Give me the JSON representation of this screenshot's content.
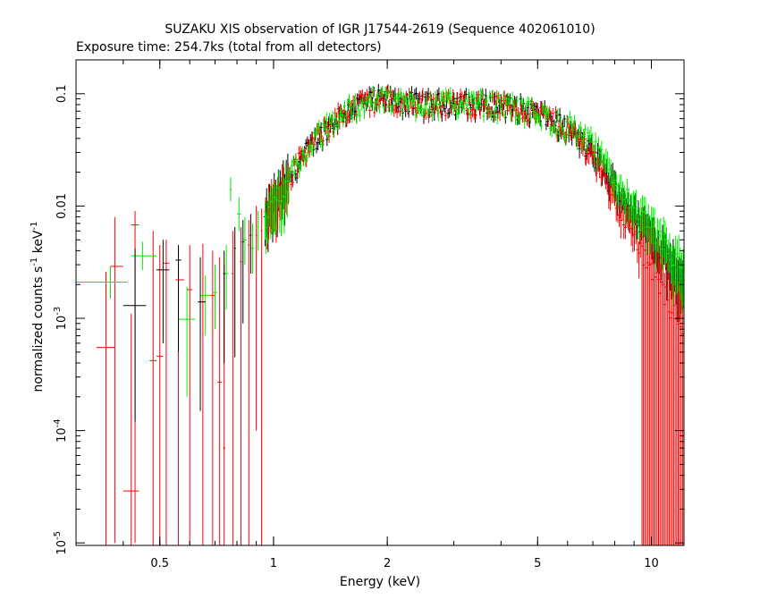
{
  "chart_data": {
    "type": "scatter",
    "title": "SUZAKU XIS observation of IGR J17544-2619 (Sequence 402061010)",
    "subtitle": "Exposure time: 254.7ks (total from all detectors)",
    "xlabel": "Energy (keV)",
    "ylabel_text": "normalized counts s",
    "ylabel_exp1": "-1",
    "ylabel_mid": " keV",
    "ylabel_exp2": "-1",
    "xscale": "log",
    "yscale": "log",
    "xlim": [
      0.3,
      12.2
    ],
    "ylim": [
      9.5e-06,
      0.2
    ],
    "grid": false,
    "x_ticks": [
      {
        "value": 0.5,
        "label": "0.5"
      },
      {
        "value": 1,
        "label": "1"
      },
      {
        "value": 2,
        "label": "2"
      },
      {
        "value": 5,
        "label": "5"
      },
      {
        "value": 10,
        "label": "10"
      }
    ],
    "y_ticks": [
      {
        "value": 0.1,
        "mant": "0.1",
        "exp": ""
      },
      {
        "value": 0.01,
        "mant": "0.01",
        "exp": ""
      },
      {
        "value": 0.001,
        "mant": "10",
        "exp": "-3"
      },
      {
        "value": 0.0001,
        "mant": "10",
        "exp": "-4"
      },
      {
        "value": 1e-05,
        "mant": "10",
        "exp": "-5"
      }
    ],
    "series": [
      {
        "color": "#ff0000",
        "points": [
          {
            "x": 0.36,
            "y": 0.00055,
            "ylo": 9e-06,
            "yhi": 0.0026,
            "xlo": 0.34,
            "xhi": 0.38
          },
          {
            "x": 0.38,
            "y": 0.0029,
            "ylo": 1e-05,
            "yhi": 0.008,
            "xlo": 0.37,
            "xhi": 0.4
          },
          {
            "x": 0.42,
            "y": 2.9e-05,
            "ylo": 9e-06,
            "yhi": 0.0011,
            "xlo": 0.4,
            "xhi": 0.44
          },
          {
            "x": 0.43,
            "y": 0.0068,
            "ylo": 1e-05,
            "yhi": 0.009,
            "xlo": 0.42,
            "xhi": 0.44
          },
          {
            "x": 0.48,
            "y": 0.00042,
            "ylo": 9e-06,
            "yhi": 0.006,
            "xlo": 0.47,
            "xhi": 0.49
          },
          {
            "x": 0.5,
            "y": 0.00046,
            "ylo": 9e-06,
            "yhi": 0.0045,
            "xlo": 0.49,
            "xhi": 0.51
          },
          {
            "x": 0.52,
            "y": 0.0031,
            "ylo": 9e-06,
            "yhi": 0.005,
            "xlo": 0.51,
            "xhi": 0.53
          },
          {
            "x": 0.56,
            "y": 0.0022,
            "ylo": 9e-06,
            "yhi": 0.0045,
            "xlo": 0.55,
            "xhi": 0.58
          },
          {
            "x": 0.6,
            "y": 0.0018,
            "ylo": 9e-06,
            "yhi": 0.0045,
            "xlo": 0.59,
            "xhi": 0.61
          },
          {
            "x": 0.65,
            "y": 0.0014,
            "ylo": 9e-06,
            "yhi": 0.0046,
            "xlo": 0.64,
            "xhi": 0.66
          },
          {
            "x": 0.69,
            "y": 0.0016,
            "ylo": 9e-06,
            "yhi": 0.004,
            "xlo": 0.68,
            "xhi": 0.7
          },
          {
            "x": 0.72,
            "y": 0.00027,
            "ylo": 9e-06,
            "yhi": 0.0035,
            "xlo": 0.71,
            "xhi": 0.73
          },
          {
            "x": 0.74,
            "y": 7e-05,
            "ylo": 9e-06,
            "yhi": 0.003,
            "xlo": 0.735,
            "xhi": 0.745
          },
          {
            "x": 0.78,
            "y": 0.0025,
            "ylo": 9e-06,
            "yhi": 0.006,
            "xlo": 0.775,
            "xhi": 0.785
          },
          {
            "x": 0.82,
            "y": 0.0032,
            "ylo": 9e-06,
            "yhi": 0.0065,
            "xlo": 0.815,
            "xhi": 0.825
          },
          {
            "x": 0.86,
            "y": 0.0045,
            "ylo": 9e-06,
            "yhi": 0.0075,
            "xlo": 0.855,
            "xhi": 0.865
          },
          {
            "x": 0.9,
            "y": 0.0055,
            "ylo": 0.0001,
            "yhi": 0.01,
            "xlo": 0.895,
            "xhi": 0.905
          },
          {
            "x": 0.93,
            "y": 0.006,
            "ylo": 9e-06,
            "yhi": 0.0095,
            "xlo": 0.925,
            "xhi": 0.935
          }
        ]
      },
      {
        "color": "#00ee00",
        "points": [
          {
            "x": 0.37,
            "y": 0.0021,
            "ylo": 0.0015,
            "yhi": 0.0029,
            "xlo": 0.3,
            "xhi": 0.41
          },
          {
            "x": 0.45,
            "y": 0.0036,
            "ylo": 0.0027,
            "yhi": 0.0048,
            "xlo": 0.42,
            "xhi": 0.49
          },
          {
            "x": 0.59,
            "y": 0.00098,
            "ylo": 0.0002,
            "yhi": 0.0019,
            "xlo": 0.56,
            "xhi": 0.62
          },
          {
            "x": 0.66,
            "y": 0.0016,
            "ylo": 0.0007,
            "yhi": 0.0024,
            "xlo": 0.64,
            "xhi": 0.68
          },
          {
            "x": 0.7,
            "y": 0.0017,
            "ylo": 0.0008,
            "yhi": 0.003,
            "xlo": 0.69,
            "xhi": 0.71
          },
          {
            "x": 0.75,
            "y": 0.0025,
            "ylo": 0.0012,
            "yhi": 0.0045,
            "xlo": 0.74,
            "xhi": 0.76
          },
          {
            "x": 0.77,
            "y": 0.014,
            "ylo": 0.011,
            "yhi": 0.018,
            "xlo": 0.765,
            "xhi": 0.775
          },
          {
            "x": 0.81,
            "y": 0.0085,
            "ylo": 0.006,
            "yhi": 0.012,
            "xlo": 0.8,
            "xhi": 0.82
          },
          {
            "x": 0.84,
            "y": 0.005,
            "ylo": 0.003,
            "yhi": 0.008,
            "xlo": 0.83,
            "xhi": 0.85
          },
          {
            "x": 0.88,
            "y": 0.0042,
            "ylo": 0.0025,
            "yhi": 0.007,
            "xlo": 0.87,
            "xhi": 0.89
          },
          {
            "x": 0.91,
            "y": 0.0065,
            "ylo": 0.004,
            "yhi": 0.009,
            "xlo": 0.905,
            "xhi": 0.915
          },
          {
            "x": 0.95,
            "y": 0.0075,
            "ylo": 0.005,
            "yhi": 0.011,
            "xlo": 0.945,
            "xhi": 0.955
          }
        ]
      },
      {
        "color": "#000000",
        "points": [
          {
            "x": 0.43,
            "y": 0.0013,
            "ylo": 0.00012,
            "yhi": 0.0042,
            "xlo": 0.4,
            "xhi": 0.46
          },
          {
            "x": 0.51,
            "y": 0.0027,
            "ylo": 0.0006,
            "yhi": 0.005,
            "xlo": 0.49,
            "xhi": 0.53
          },
          {
            "x": 0.56,
            "y": 0.0033,
            "ylo": 0.0005,
            "yhi": 0.0045,
            "xlo": 0.55,
            "xhi": 0.57
          },
          {
            "x": 0.64,
            "y": 0.0014,
            "ylo": 0.00015,
            "yhi": 0.0035,
            "xlo": 0.63,
            "xhi": 0.66
          },
          {
            "x": 0.74,
            "y": 0.0025,
            "ylo": 0.0004,
            "yhi": 0.004,
            "xlo": 0.735,
            "xhi": 0.745
          },
          {
            "x": 0.79,
            "y": 0.0042,
            "ylo": 0.00045,
            "yhi": 0.0065,
            "xlo": 0.785,
            "xhi": 0.795
          },
          {
            "x": 0.83,
            "y": 0.0048,
            "ylo": 0.0009,
            "yhi": 0.0075,
            "xlo": 0.825,
            "xhi": 0.835
          },
          {
            "x": 0.87,
            "y": 0.0055,
            "ylo": 0.0025,
            "yhi": 0.0085,
            "xlo": 0.865,
            "xhi": 0.875
          }
        ]
      }
    ],
    "continuum": {
      "x": [
        0.95,
        1.0,
        1.1,
        1.2,
        1.3,
        1.4,
        1.5,
        1.6,
        1.7,
        1.8,
        1.9,
        2.0,
        2.2,
        2.5,
        2.8,
        3.0,
        3.5,
        4.0,
        4.5,
        5.0,
        5.5,
        6.0,
        6.5,
        7.0,
        7.5,
        8.0,
        8.5,
        9.0,
        9.5,
        10.0,
        10.5,
        11.0,
        11.5,
        12.0
      ],
      "y": [
        0.0075,
        0.011,
        0.018,
        0.028,
        0.04,
        0.052,
        0.064,
        0.075,
        0.082,
        0.087,
        0.088,
        0.088,
        0.085,
        0.082,
        0.082,
        0.083,
        0.082,
        0.079,
        0.074,
        0.067,
        0.058,
        0.048,
        0.038,
        0.029,
        0.021,
        0.015,
        0.011,
        0.0085,
        0.0068,
        0.0055,
        0.0045,
        0.0037,
        0.003,
        0.0025
      ]
    }
  }
}
